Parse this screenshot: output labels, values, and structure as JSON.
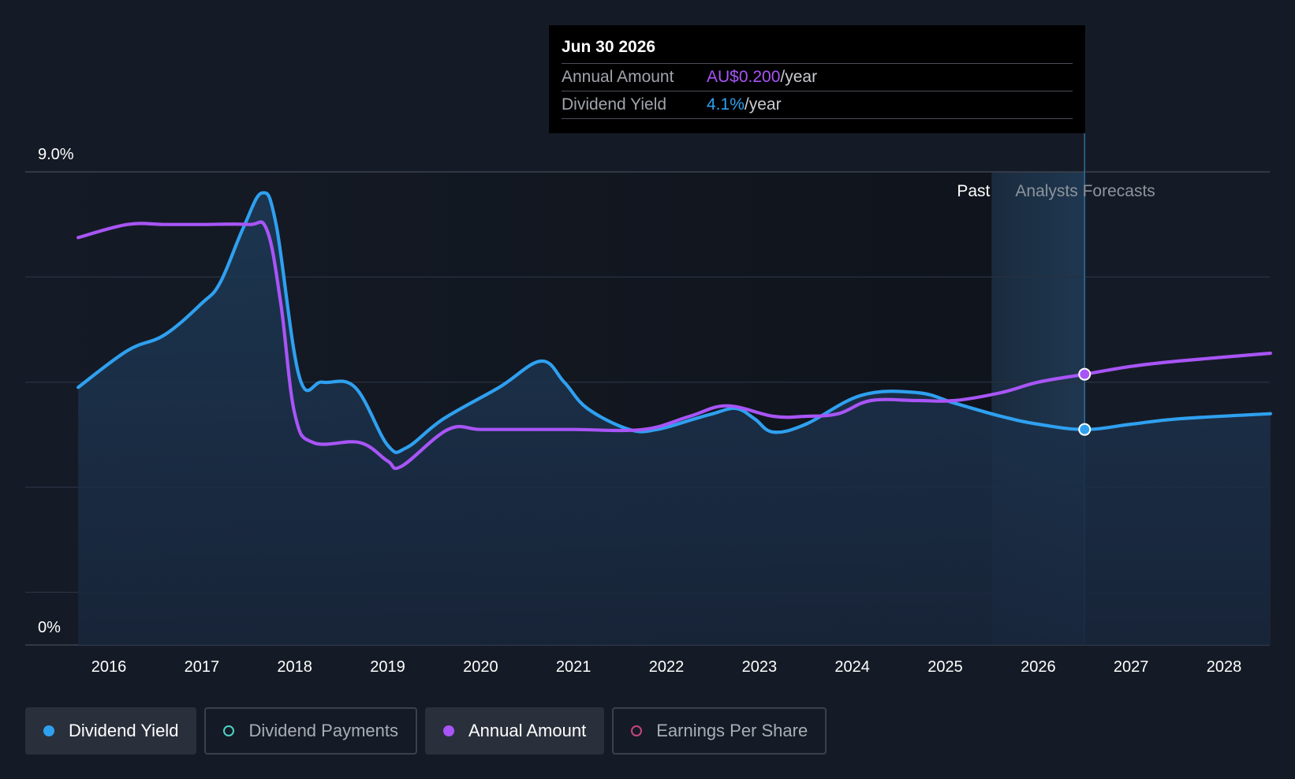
{
  "tooltip": {
    "date": "Jun 30 2026",
    "rows": [
      {
        "label": "Annual Amount",
        "value": "AU$0.200",
        "unit": "/year"
      },
      {
        "label": "Dividend Yield",
        "value": "4.1%",
        "unit": "/year"
      }
    ]
  },
  "legend": [
    {
      "label": "Dividend Yield",
      "color": "#2fa0f0",
      "style": "filled",
      "active": true
    },
    {
      "label": "Dividend Payments",
      "color": "#4fd1c5",
      "style": "outline",
      "active": false
    },
    {
      "label": "Annual Amount",
      "color": "#a855f7",
      "style": "filled",
      "active": true
    },
    {
      "label": "Earnings Per Share",
      "color": "#c2477a",
      "style": "outline",
      "active": false
    }
  ],
  "chart_data": {
    "type": "line",
    "ylim": [
      0,
      9
    ],
    "y_tick_labels": [
      "9.0%",
      "0%"
    ],
    "x_ticks": [
      2016,
      2017,
      2018,
      2019,
      2020,
      2021,
      2022,
      2023,
      2024,
      2025,
      2026,
      2027,
      2028
    ],
    "x_tick_labels": [
      "2016",
      "2017",
      "2018",
      "2019",
      "2020",
      "2021",
      "2022",
      "2023",
      "2024",
      "2025",
      "2026",
      "2027",
      "2028"
    ],
    "xlim": [
      2015.1,
      2028.5
    ],
    "past_label": "Past",
    "forecast_label": "Analysts Forecasts",
    "forecast_start": 2025.5,
    "highlight_x": 2026.5,
    "grid": true,
    "series": [
      {
        "name": "Dividend Yield",
        "color": "#2fa0f0",
        "area": true,
        "points": [
          [
            2015.67,
            4.9
          ],
          [
            2016.2,
            5.6
          ],
          [
            2016.6,
            5.9
          ],
          [
            2017.0,
            6.5
          ],
          [
            2017.2,
            6.9
          ],
          [
            2017.45,
            7.95
          ],
          [
            2017.65,
            8.6
          ],
          [
            2017.8,
            8.0
          ],
          [
            2018.05,
            5.1
          ],
          [
            2018.3,
            5.0
          ],
          [
            2018.65,
            4.9
          ],
          [
            2019.0,
            3.8
          ],
          [
            2019.2,
            3.75
          ],
          [
            2019.6,
            4.3
          ],
          [
            2020.2,
            4.9
          ],
          [
            2020.65,
            5.4
          ],
          [
            2020.9,
            5.0
          ],
          [
            2021.15,
            4.5
          ],
          [
            2021.6,
            4.1
          ],
          [
            2021.9,
            4.1
          ],
          [
            2022.3,
            4.3
          ],
          [
            2022.5,
            4.4
          ],
          [
            2022.75,
            4.5
          ],
          [
            2022.95,
            4.3
          ],
          [
            2023.15,
            4.05
          ],
          [
            2023.5,
            4.2
          ],
          [
            2024.1,
            4.75
          ],
          [
            2024.7,
            4.8
          ],
          [
            2025.1,
            4.6
          ],
          [
            2025.6,
            4.35
          ],
          [
            2026.0,
            4.2
          ],
          [
            2026.5,
            4.1
          ],
          [
            2027.0,
            4.2
          ],
          [
            2027.5,
            4.3
          ],
          [
            2028.5,
            4.4
          ]
        ]
      },
      {
        "name": "Annual Amount",
        "color": "#a855f7",
        "area": false,
        "points": [
          [
            2015.67,
            7.75
          ],
          [
            2016.2,
            8.0
          ],
          [
            2016.6,
            8.0
          ],
          [
            2017.0,
            8.0
          ],
          [
            2017.5,
            8.0
          ],
          [
            2017.7,
            7.9
          ],
          [
            2017.85,
            6.5
          ],
          [
            2018.0,
            4.4
          ],
          [
            2018.2,
            3.85
          ],
          [
            2018.7,
            3.85
          ],
          [
            2019.0,
            3.5
          ],
          [
            2019.15,
            3.4
          ],
          [
            2019.65,
            4.1
          ],
          [
            2020.0,
            4.1
          ],
          [
            2020.5,
            4.1
          ],
          [
            2021.0,
            4.1
          ],
          [
            2021.75,
            4.1
          ],
          [
            2022.25,
            4.35
          ],
          [
            2022.65,
            4.55
          ],
          [
            2023.15,
            4.35
          ],
          [
            2023.5,
            4.35
          ],
          [
            2023.85,
            4.4
          ],
          [
            2024.2,
            4.65
          ],
          [
            2024.7,
            4.65
          ],
          [
            2025.1,
            4.65
          ],
          [
            2025.6,
            4.8
          ],
          [
            2026.0,
            5.0
          ],
          [
            2026.5,
            5.15
          ],
          [
            2027.0,
            5.3
          ],
          [
            2027.5,
            5.4
          ],
          [
            2028.5,
            5.55
          ]
        ]
      }
    ]
  }
}
